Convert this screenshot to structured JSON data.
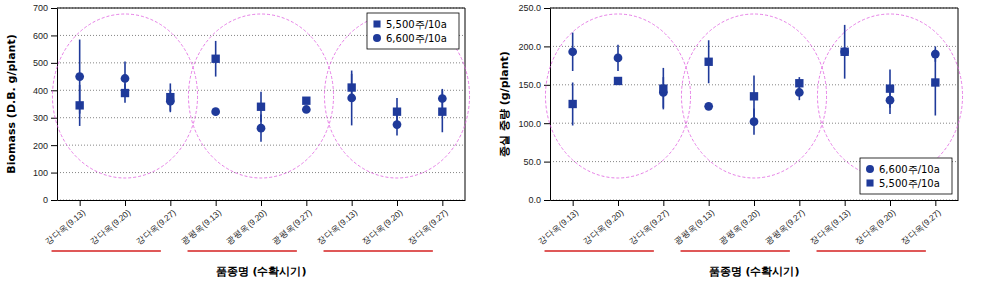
{
  "chart_data": [
    {
      "type": "scatter",
      "y_label": "Biomass (D.B. g/plant)",
      "x_label": "품종명 (수확시기)",
      "categories": [
        "강다옥(9.13)",
        "강다옥(9.20)",
        "강다옥(9.27)",
        "광평옥(9.13)",
        "광평옥(9.20)",
        "광평옥(9.27)",
        "장다옥(9.13)",
        "장다옥(9.20)",
        "장다옥(9.27)"
      ],
      "series": [
        {
          "name": "5,500주/10a",
          "color": "#1f3a9a",
          "marker": "square",
          "values": [
            345,
            390,
            375,
            515,
            340,
            362,
            410,
            322,
            322
          ],
          "errors": [
            75,
            35,
            50,
            65,
            55,
            0,
            50,
            50,
            75
          ]
        },
        {
          "name": "6,600주/10a",
          "color": "#1f3a9a",
          "marker": "circle",
          "values": [
            450,
            443,
            360,
            322,
            262,
            330,
            372,
            275,
            370
          ],
          "errors": [
            135,
            62,
            40,
            0,
            50,
            0,
            100,
            40,
            35
          ]
        }
      ],
      "ylim": [
        0,
        700
      ],
      "yticks": [
        0,
        100,
        200,
        300,
        400,
        500,
        600,
        700
      ],
      "grid": true,
      "legend": "top-right"
    },
    {
      "type": "scatter",
      "y_label": "종실 중량 (g/plant)",
      "x_label": "품종명 (수확시기)",
      "categories": [
        "강다옥(9.13)",
        "강다옥(9.20)",
        "강다옥(9.27)",
        "광평옥(9.13)",
        "광평옥(9.20)",
        "광평옥(9.27)",
        "장다옥(9.13)",
        "장다옥(9.20)",
        "장다옥(9.27)"
      ],
      "series": [
        {
          "name": "6,600주/10a",
          "color": "#1f3a9a",
          "marker": "circle",
          "values": [
            193,
            185,
            140,
            122,
            102,
            140,
            193,
            130,
            190
          ],
          "errors": [
            25,
            17,
            20,
            0,
            17,
            10,
            0,
            18,
            10
          ]
        },
        {
          "name": "5,500주/10a",
          "color": "#1f3a9a",
          "marker": "square",
          "values": [
            125,
            155,
            145,
            180,
            135,
            152,
            193,
            145,
            153
          ],
          "errors": [
            28,
            5,
            27,
            28,
            27,
            8,
            35,
            25,
            43
          ]
        }
      ],
      "ylim": [
        0,
        250
      ],
      "yticks": [
        {
          "value": 0,
          "label": "0.0"
        },
        {
          "value": 50,
          "label": "50.0"
        },
        {
          "value": 100,
          "label": "100.0"
        },
        {
          "value": 150,
          "label": "150.0"
        },
        {
          "value": 200,
          "label": "200.0"
        },
        {
          "value": 250,
          "label": "250.0"
        }
      ],
      "grid": true,
      "legend": "bottom-right"
    }
  ]
}
